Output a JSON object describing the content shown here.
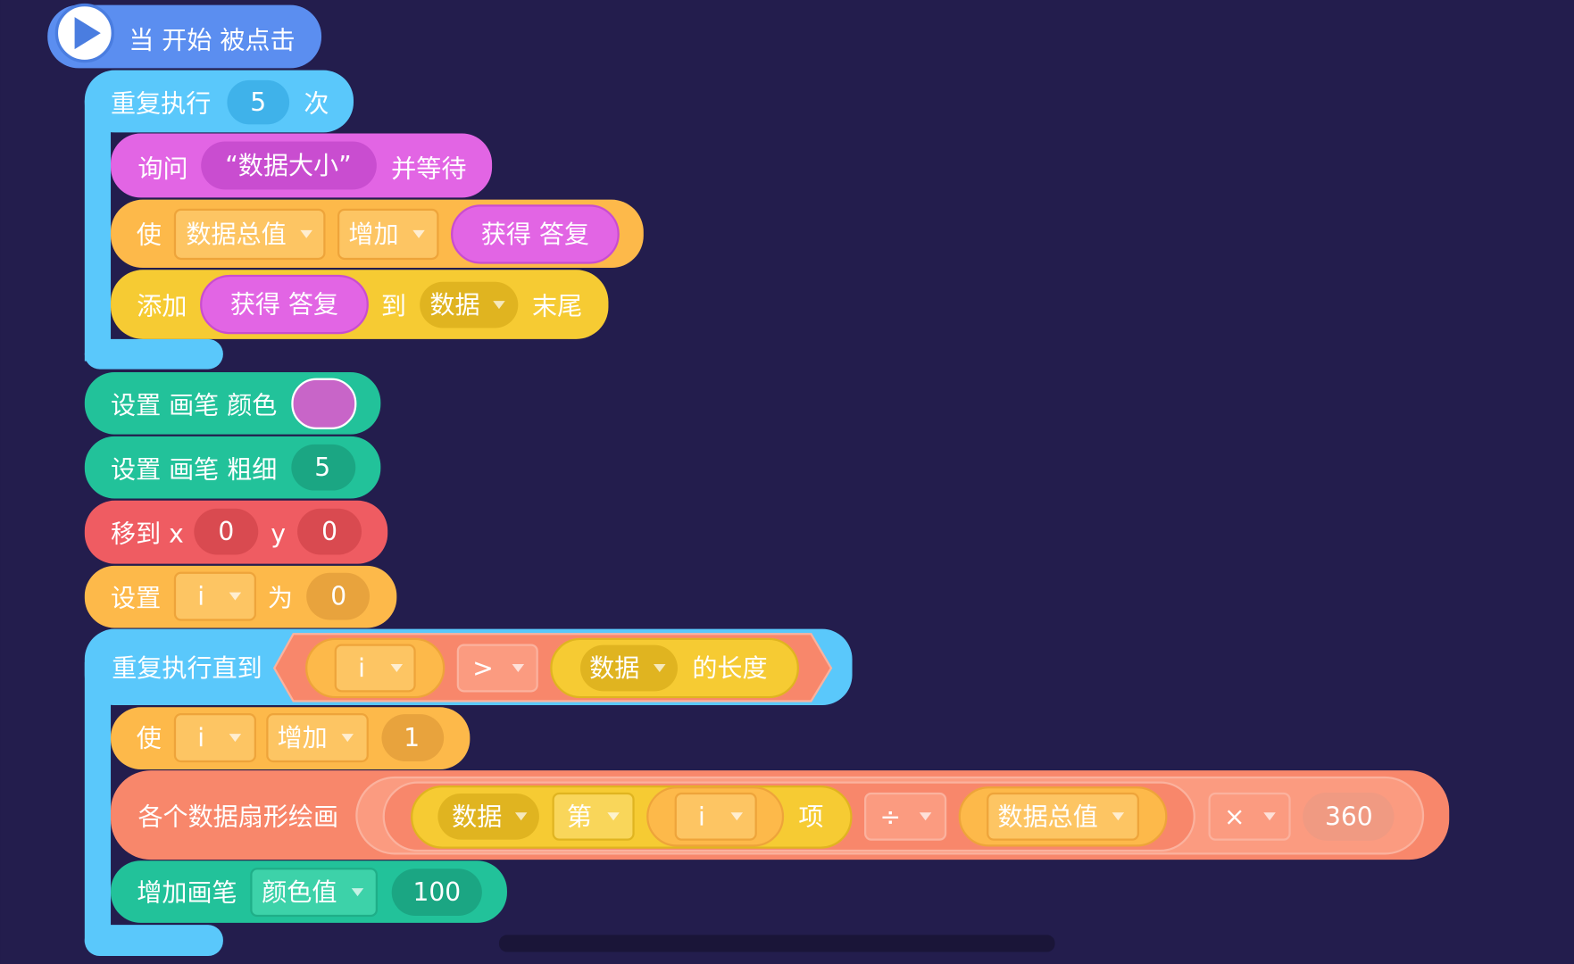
{
  "hat": "当 开始 被点击",
  "repeat": {
    "label": "重复执行",
    "count": 5,
    "unit": "次"
  },
  "ask": {
    "label": "询问",
    "prompt": "“数据大小”",
    "suffix": "并等待"
  },
  "change_total": {
    "label": "使",
    "var": "数据总值",
    "op": "增加",
    "value": "获得 答复"
  },
  "add_item": {
    "label": "添加",
    "item": "获得 答复",
    "to": "到",
    "list": "数据",
    "suffix": "末尾"
  },
  "pen_color": {
    "label": "设置 画笔 颜色"
  },
  "pen_size": {
    "label": "设置 画笔 粗细",
    "value": 5
  },
  "move": {
    "label": "移到 x",
    "x": 0,
    "y_label": "y",
    "y": 0
  },
  "set_i": {
    "label": "设置",
    "var": "i",
    "to": "为",
    "value": 0
  },
  "until": {
    "label": "重复执行直到",
    "var": "i",
    "op": ">",
    "list": "数据",
    "prop": "的长度"
  },
  "change_i": {
    "label": "使",
    "var": "i",
    "op": "增加",
    "value": 1
  },
  "sector": {
    "label": "各个数据扇形绘画",
    "list": "数据",
    "nth": "第",
    "index": "i",
    "item": "项",
    "div": "÷",
    "total": "数据总值",
    "mul": "×",
    "factor": 360
  },
  "pen_change": {
    "label": "增加画笔",
    "param": "颜色值",
    "value": 100
  }
}
